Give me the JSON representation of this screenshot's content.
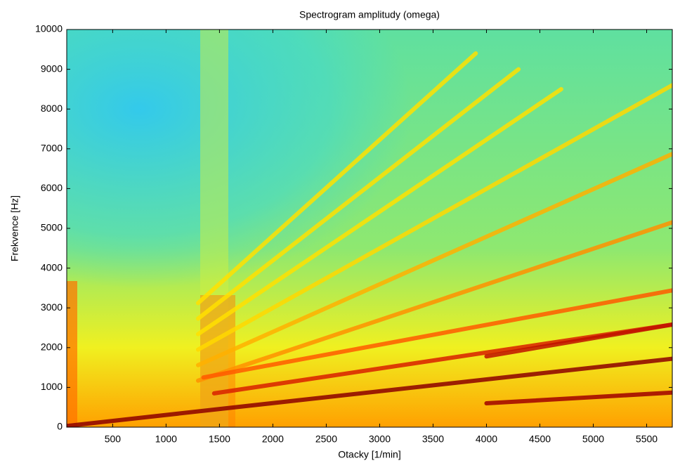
{
  "chart_data": {
    "type": "spectrogram",
    "title": "Spectrogram amplitudy (omega)",
    "xlabel": "Otacky [1/min]",
    "ylabel": "Frekvence [Hz]",
    "xlim": [
      70,
      5740
    ],
    "ylim": [
      0,
      10000
    ],
    "xticks": [
      500,
      1000,
      1500,
      2000,
      2500,
      3000,
      3500,
      4000,
      4500,
      5000,
      5500
    ],
    "yticks": [
      0,
      1000,
      2000,
      3000,
      4000,
      5000,
      6000,
      7000,
      8000,
      9000,
      10000
    ],
    "lines": [
      {
        "x": [
          1300,
          3900
        ],
        "values": [
          3120,
          9400
        ],
        "color": "#ffe000"
      },
      {
        "x": [
          1300,
          4300
        ],
        "values": [
          2730,
          9000
        ],
        "color": "#ffe000"
      },
      {
        "x": [
          1300,
          4700
        ],
        "values": [
          2340,
          8500
        ],
        "color": "#ffe000"
      },
      {
        "x": [
          1300,
          5740
        ],
        "values": [
          1950,
          8600
        ],
        "color": "#ffd800"
      },
      {
        "x": [
          1300,
          5740
        ],
        "values": [
          1560,
          6870
        ],
        "color": "#ffb000"
      },
      {
        "x": [
          1300,
          5740
        ],
        "values": [
          1170,
          5150
        ],
        "color": "#ff9000"
      },
      {
        "x": [
          1350,
          5740
        ],
        "values": [
          1250,
          3440
        ],
        "color": "#ff5a00"
      },
      {
        "x": [
          1450,
          5740
        ],
        "values": [
          850,
          2580
        ],
        "color": "#d82000"
      },
      {
        "x": [
          4000,
          5740
        ],
        "values": [
          1780,
          2580
        ],
        "color": "#c01000"
      },
      {
        "x": [
          4000,
          5740
        ],
        "values": [
          600,
          870
        ],
        "color": "#a00000"
      },
      {
        "x": [
          70,
          5740
        ],
        "values": [
          30,
          1720
        ],
        "color": "#8c0000"
      }
    ]
  }
}
